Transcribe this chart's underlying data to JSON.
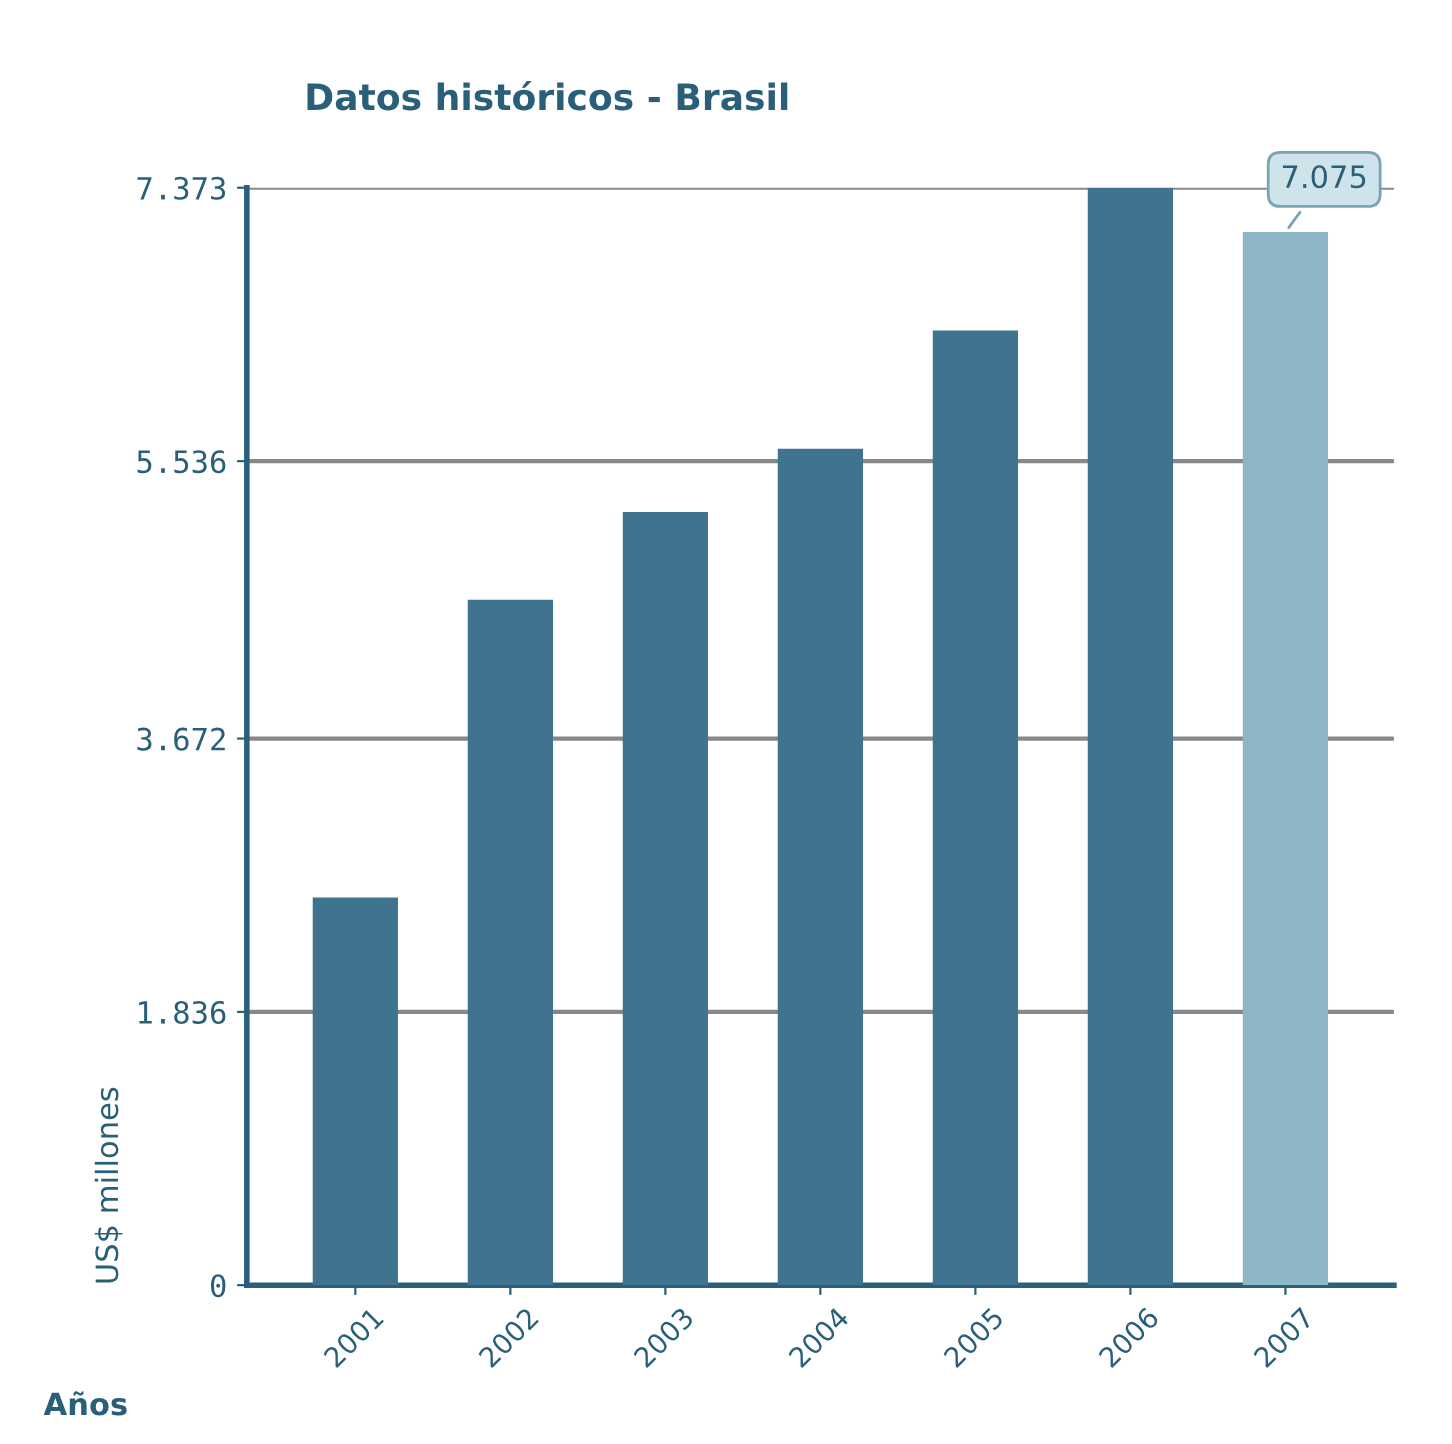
{
  "chart_data": {
    "type": "bar",
    "title": "Datos históricos - Brasil",
    "xlabel": "Años",
    "ylabel": "US$ millones",
    "categories": [
      "2001",
      "2002",
      "2003",
      "2004",
      "2005",
      "2006",
      "2007"
    ],
    "values": [
      2604,
      4605,
      5194,
      5619,
      6414,
      7373,
      7075
    ],
    "colors": [
      "#3f7390",
      "#3f7390",
      "#3f7390",
      "#3f7390",
      "#3f7390",
      "#3f7390",
      "#8db7c6"
    ],
    "value_labels": [
      null,
      null,
      null,
      null,
      null,
      null,
      "7.075"
    ],
    "ylim": [
      0,
      7373
    ],
    "yticks": [
      0,
      {
        "value": 1836,
        "label": "1.836"
      },
      {
        "value": 3672,
        "label": "3.672"
      },
      {
        "value": 5536,
        "label": "5.536"
      },
      {
        "value": 7373,
        "label": "7.373"
      }
    ],
    "grid": "y"
  }
}
